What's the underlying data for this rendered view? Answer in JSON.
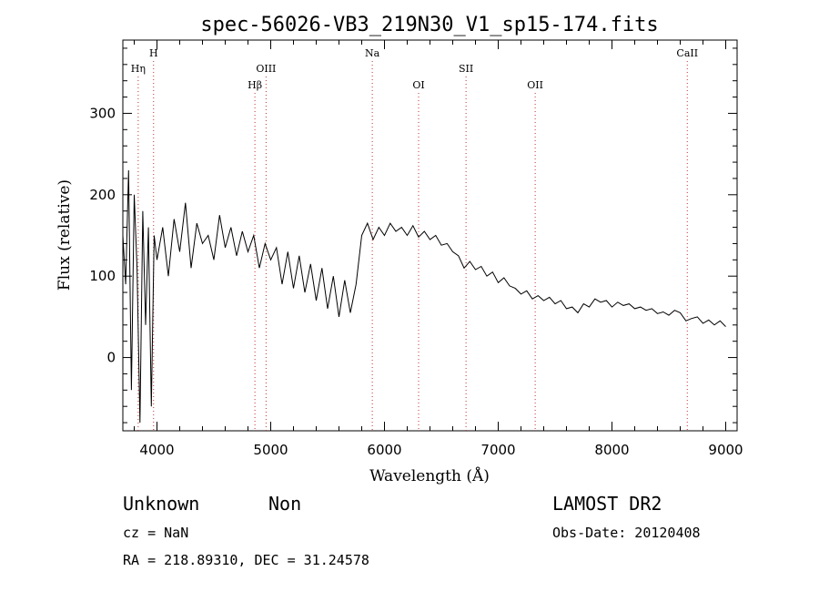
{
  "chart_data": {
    "type": "line",
    "title": "spec-56026-VB3_219N30_V1_sp15-174.fits",
    "xlabel": "Wavelength (Å)",
    "ylabel": "Flux (relative)",
    "xlim": [
      3700,
      9100
    ],
    "ylim": [
      -90,
      390
    ],
    "x_ticks": [
      4000,
      5000,
      6000,
      7000,
      8000,
      9000
    ],
    "y_ticks": [
      0,
      100,
      200,
      300
    ],
    "grid": false,
    "line_markers": [
      {
        "name": "Hη",
        "x": 3835,
        "row": 2
      },
      {
        "name": "H",
        "x": 3970,
        "row": 1
      },
      {
        "name": "Hβ",
        "x": 4861,
        "row": 3
      },
      {
        "name": "OIII",
        "x": 4959,
        "row": 2
      },
      {
        "name": "Na",
        "x": 5893,
        "row": 1
      },
      {
        "name": "OI",
        "x": 6300,
        "row": 3
      },
      {
        "name": "SII",
        "x": 6717,
        "row": 2
      },
      {
        "name": "OII",
        "x": 7325,
        "row": 3
      },
      {
        "name": "CaII",
        "x": 8662,
        "row": 1
      }
    ],
    "series": [
      {
        "x": [
          3700,
          3725,
          3750,
          3775,
          3800,
          3825,
          3850,
          3875,
          3900,
          3925,
          3950,
          3975,
          4000,
          4050,
          4100,
          4150,
          4200,
          4250,
          4300,
          4350,
          4400,
          4450,
          4500,
          4550,
          4600,
          4650,
          4700,
          4750,
          4800,
          4850,
          4900,
          4950,
          5000,
          5050,
          5100,
          5150,
          5200,
          5250,
          5300,
          5350,
          5400,
          5450,
          5500,
          5550,
          5600,
          5650,
          5700,
          5750,
          5800,
          5850,
          5900,
          5950,
          6000,
          6050,
          6100,
          6150,
          6200,
          6250,
          6300,
          6350,
          6400,
          6450,
          6500,
          6550,
          6600,
          6650,
          6700,
          6750,
          6800,
          6850,
          6900,
          6950,
          7000,
          7050,
          7100,
          7150,
          7200,
          7250,
          7300,
          7350,
          7400,
          7450,
          7500,
          7550,
          7600,
          7650,
          7700,
          7750,
          7800,
          7850,
          7900,
          7950,
          8000,
          8050,
          8100,
          8150,
          8200,
          8250,
          8300,
          8350,
          8400,
          8450,
          8500,
          8550,
          8600,
          8650,
          8700,
          8750,
          8800,
          8850,
          8900,
          8950,
          9000
        ],
        "y": [
          150,
          90,
          230,
          -40,
          200,
          110,
          -80,
          180,
          40,
          160,
          -60,
          150,
          120,
          160,
          100,
          170,
          130,
          190,
          110,
          165,
          140,
          150,
          120,
          175,
          135,
          160,
          125,
          155,
          130,
          150,
          110,
          140,
          120,
          135,
          90,
          130,
          85,
          125,
          80,
          115,
          70,
          110,
          60,
          100,
          50,
          95,
          55,
          90,
          150,
          165,
          145,
          160,
          150,
          165,
          155,
          160,
          150,
          162,
          148,
          155,
          145,
          150,
          138,
          140,
          130,
          125,
          110,
          118,
          108,
          112,
          100,
          105,
          92,
          98,
          88,
          85,
          78,
          82,
          72,
          76,
          70,
          74,
          66,
          70,
          60,
          62,
          55,
          66,
          62,
          72,
          68,
          70,
          62,
          68,
          64,
          66,
          60,
          62,
          58,
          60,
          54,
          56,
          52,
          58,
          55,
          45,
          48,
          50,
          42,
          46,
          40,
          45,
          38
        ]
      }
    ]
  },
  "footer": {
    "left_line1_a": "Unknown",
    "left_line1_b": "Non",
    "cz": "cz = NaN",
    "coords": "RA = 218.89310, DEC =  31.24578",
    "survey": "LAMOST DR2",
    "obs_date": "Obs-Date: 20120408"
  }
}
